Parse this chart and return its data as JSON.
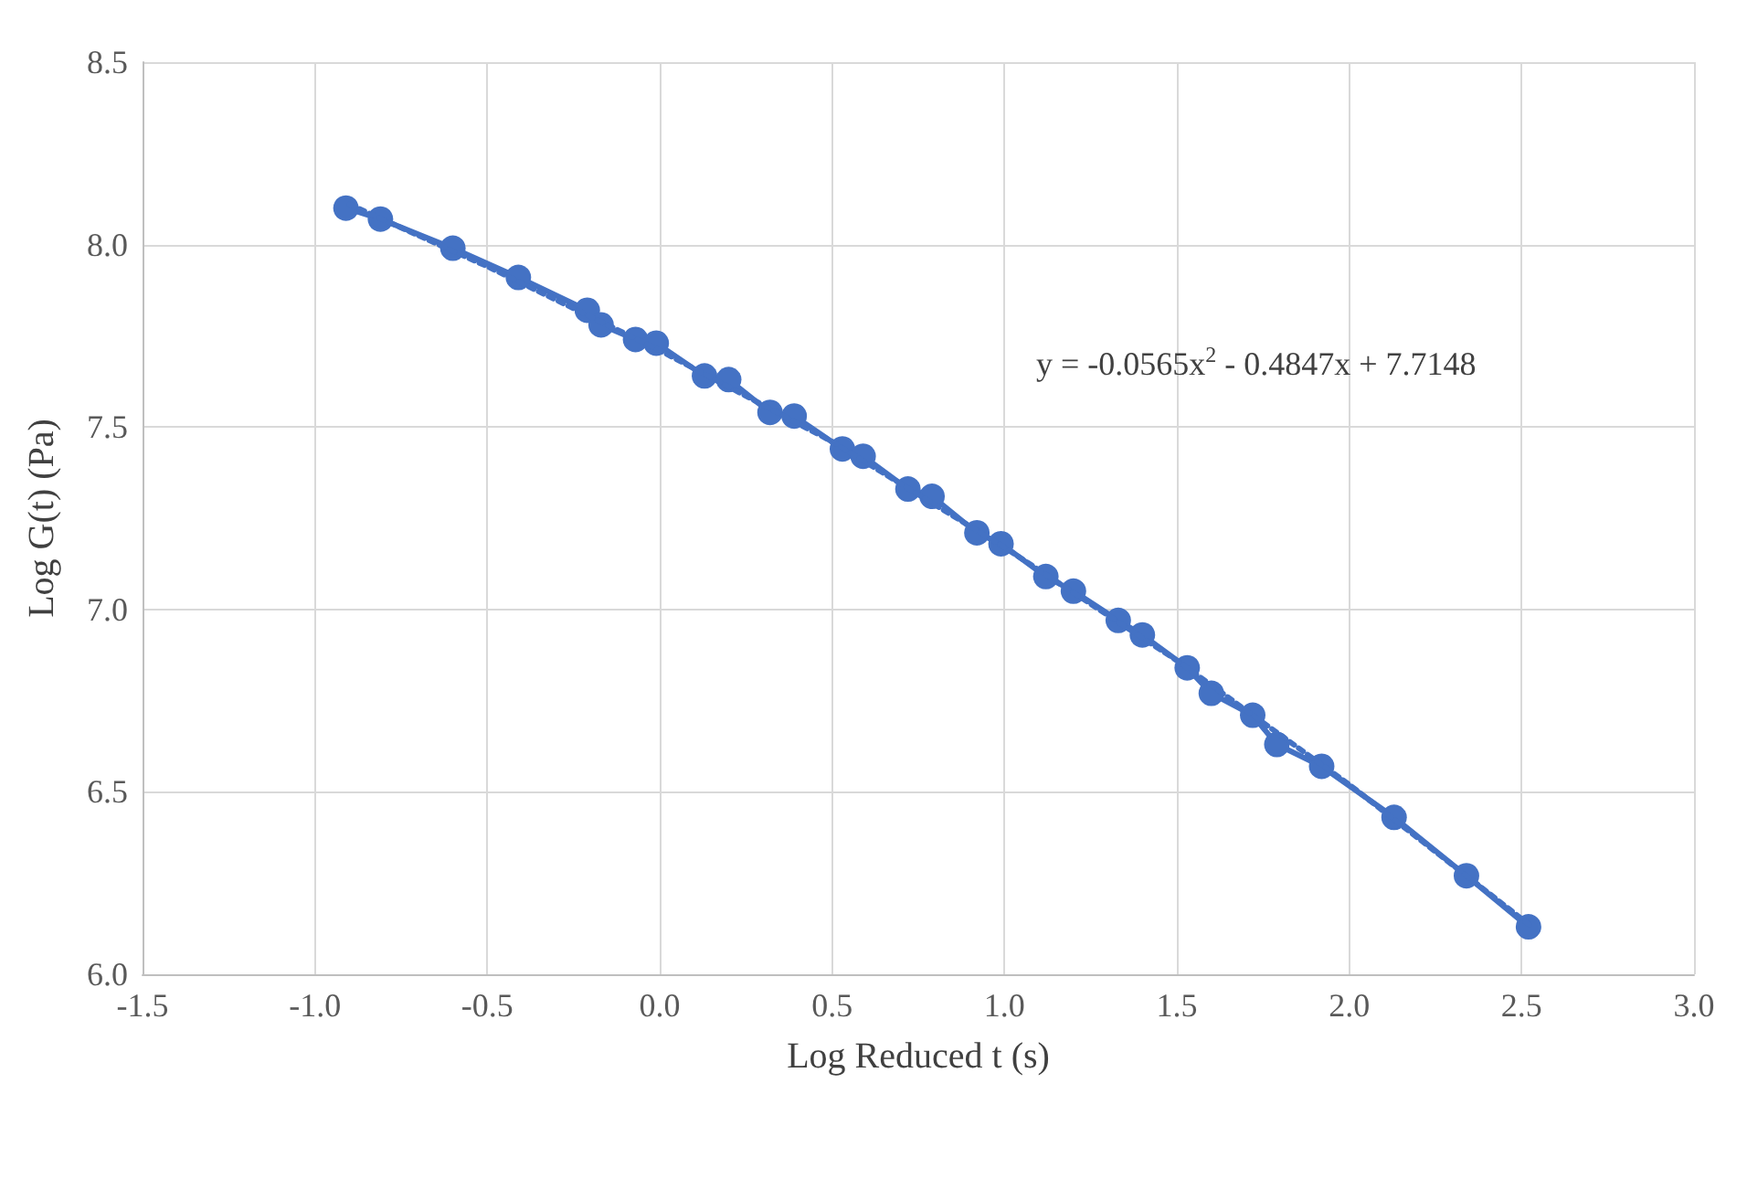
{
  "chart_data": {
    "type": "line",
    "xlabel": "Log Reduced t (s)",
    "ylabel": "Log G(t) (Pa)",
    "xlim": [
      -1.5,
      3.0
    ],
    "xticks": [
      {
        "value": -1.5,
        "label": "-1.5"
      },
      {
        "value": -1.0,
        "label": "-1.0"
      },
      {
        "value": -0.5,
        "label": "-0.5"
      },
      {
        "value": 0,
        "label": "0.0"
      },
      {
        "value": 0.5,
        "label": "0.5"
      },
      {
        "value": 1.0,
        "label": "1.0"
      },
      {
        "value": 1.5,
        "label": "1.5"
      },
      {
        "value": 2.0,
        "label": "2.0"
      },
      {
        "value": 2.5,
        "label": "2.5"
      },
      {
        "value": 3.0,
        "label": "3.0"
      }
    ],
    "ylim": [
      6.0,
      8.5
    ],
    "yticks": [
      {
        "value": 6.0,
        "label": "6.0"
      },
      {
        "value": 6.5,
        "label": "6.5"
      },
      {
        "value": 7.0,
        "label": "7.0"
      },
      {
        "value": 7.5,
        "label": "7.5"
      },
      {
        "value": 8.0,
        "label": "8.0"
      },
      {
        "value": 8.5,
        "label": "8.5"
      }
    ],
    "grid": true,
    "series": [
      {
        "color": "#4472c4",
        "marker": "circle",
        "line_style": "solid",
        "x": [
          -0.91,
          -0.81,
          -0.6,
          -0.41,
          -0.21,
          -0.17,
          -0.07,
          -0.01,
          0.13,
          0.2,
          0.32,
          0.39,
          0.53,
          0.59,
          0.72,
          0.79,
          0.92,
          0.99,
          1.12,
          1.2,
          1.33,
          1.4,
          1.53,
          1.6,
          1.72,
          1.79,
          1.92,
          2.13,
          2.34,
          2.52
        ],
        "values": [
          8.1,
          8.07,
          7.99,
          7.91,
          7.82,
          7.78,
          7.74,
          7.73,
          7.64,
          7.63,
          7.54,
          7.53,
          7.44,
          7.42,
          7.33,
          7.31,
          7.21,
          7.18,
          7.09,
          7.05,
          6.97,
          6.93,
          6.84,
          6.77,
          6.71,
          6.63,
          6.57,
          6.43,
          6.27,
          6.13
        ]
      },
      {
        "type": "line",
        "color": "#4472c4",
        "marker": "none",
        "line_style": "dotted",
        "x": [
          -0.9,
          -0.5,
          0,
          0.5,
          1,
          1.5,
          2,
          2.53
        ],
        "values": [
          8.11,
          7.94,
          7.71,
          7.46,
          7.17,
          6.86,
          6.52,
          6.13
        ]
      }
    ],
    "annotations": [
      "y = -0.0565x$^{2}$ - 0.4847x + 7.7148"
    ]
  }
}
